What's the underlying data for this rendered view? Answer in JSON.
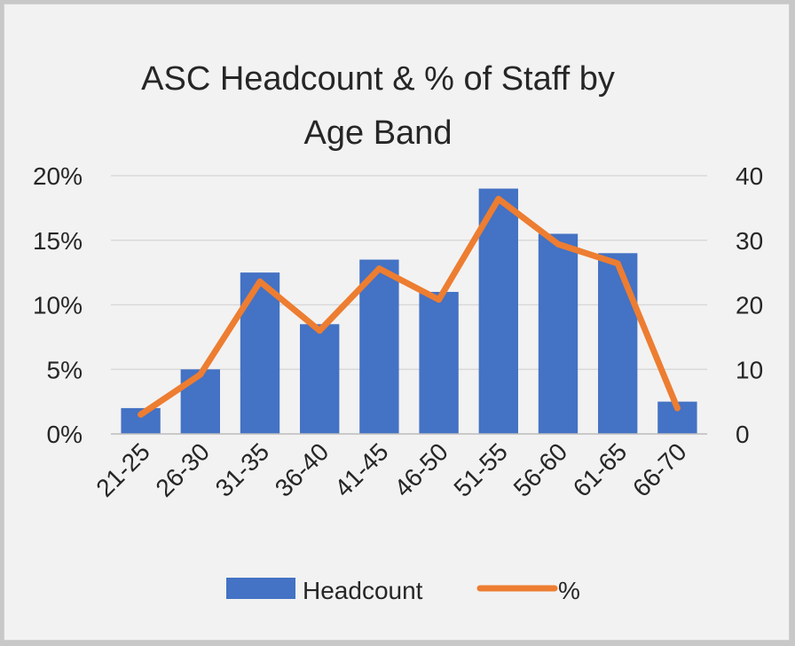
{
  "chart_data": {
    "type": "bar",
    "title_lines": [
      "ASC Headcount & % of Staff by",
      "Age Band"
    ],
    "categories": [
      "21-25",
      "26-30",
      "31-35",
      "36-40",
      "41-45",
      "46-50",
      "51-55",
      "56-60",
      "61-65",
      "66-70"
    ],
    "series": [
      {
        "name": "Headcount",
        "type": "bar",
        "axis": "right",
        "color": "#4472c4",
        "values": [
          4,
          10,
          25,
          17,
          27,
          22,
          38,
          31,
          28,
          5
        ]
      },
      {
        "name": "%",
        "type": "line",
        "axis": "left",
        "color": "#ed7d31",
        "values": [
          1.5,
          4.6,
          11.8,
          8.0,
          12.8,
          10.4,
          18.2,
          14.7,
          13.2,
          2.0
        ]
      }
    ],
    "y_left": {
      "ticks": [
        "0%",
        "5%",
        "10%",
        "15%",
        "20%"
      ],
      "range": [
        0,
        20
      ]
    },
    "y_right": {
      "ticks": [
        "0",
        "10",
        "20",
        "30",
        "40"
      ],
      "range": [
        0,
        40
      ]
    },
    "grid": true,
    "legend_position": "bottom"
  }
}
